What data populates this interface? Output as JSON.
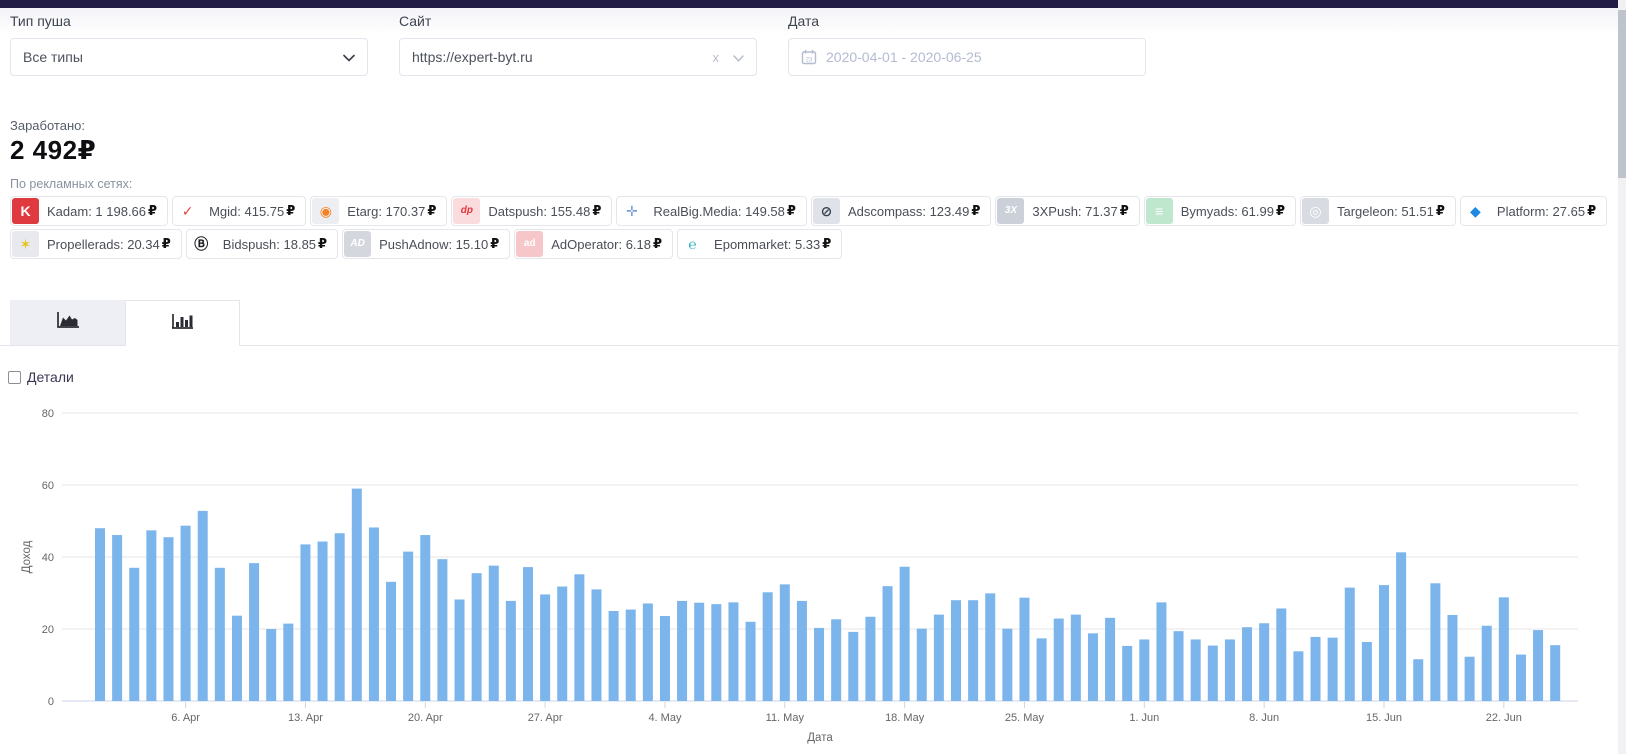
{
  "currency": "₽",
  "filters": {
    "push_type": {
      "label": "Тип пуша",
      "value": "Все типы"
    },
    "site": {
      "label": "Сайт",
      "value": "https://expert-byt.ru",
      "clear_icon": "x"
    },
    "date": {
      "label": "Дата",
      "value": "2020-04-01 - 2020-06-25"
    }
  },
  "summary": {
    "earned_label": "Заработано:",
    "earned_value": "2 492₽",
    "networks_label": "По рекламных сетях:"
  },
  "network_rows": [
    [
      {
        "id": "kadam",
        "label": "Kadam: 1 198.66",
        "icon": "kadam-icon",
        "glyph": "K",
        "icon_color": "#ffffff",
        "icon_bg": "#e03a41"
      },
      {
        "id": "mgid",
        "label": "Mgid: 415.75",
        "icon": "mgid-icon",
        "glyph": "✓",
        "icon_color": "#e24444",
        "icon_bg": "#ffffff"
      },
      {
        "id": "etarg",
        "label": "Etarg: 170.37",
        "icon": "etarg-icon",
        "glyph": "◉",
        "icon_color": "#f5821f",
        "icon_bg": "#eceef2"
      },
      {
        "id": "datspush",
        "label": "Datspush: 155.48",
        "icon": "datspush-icon",
        "glyph": "dp",
        "icon_color": "#e8363d",
        "icon_bg": "#fadbde",
        "icon_style": "italic"
      },
      {
        "id": "realbig-media",
        "label": "RealBig.Media: 149.58",
        "icon": "realbig-media-move-arrows-icon",
        "glyph": "✛",
        "icon_color": "#7b9fd4",
        "icon_bg": "#ffffff"
      },
      {
        "id": "adscompass",
        "label": "Adscompass: 123.49",
        "icon": "adscompass-compass-icon",
        "glyph": "⊘",
        "icon_color": "#39424e",
        "icon_bg": "#dfe2e8"
      },
      {
        "id": "3xpush",
        "label": "3XPush: 71.37",
        "icon": "3xpush-icon",
        "glyph": "3X",
        "icon_color": "#ffffff",
        "icon_bg": "#ccd1d9",
        "icon_style": "italic"
      },
      {
        "id": "bymyads",
        "label": "Bymyads: 61.99",
        "icon": "bymyads-icon",
        "glyph": "≡",
        "icon_color": "#ffffff",
        "icon_bg": "#bfe7cd"
      },
      {
        "id": "targeleon",
        "label": "Targeleon: 51.51",
        "icon": "targeleon-swirl-icon",
        "glyph": "◎",
        "icon_color": "#ffffff",
        "icon_bg": "#d8dbe2"
      },
      {
        "id": "platform",
        "label": "Platform: 27.65",
        "icon": "platform-cube-icon",
        "glyph": "◆",
        "icon_color": "#1e88e5",
        "icon_bg": "#ffffff"
      }
    ],
    [
      {
        "id": "propellerads",
        "label": "Propellerads: 20.34",
        "icon": "propellerads-propeller-icon",
        "glyph": "✶",
        "icon_color": "#e3c313",
        "icon_bg": "#e7e9ee"
      },
      {
        "id": "bidspush",
        "label": "Bidspush: 18.85",
        "icon": "bidspush-icon",
        "glyph": "Ⓑ",
        "icon_color": "#1d1d22",
        "icon_bg": "#ffffff"
      },
      {
        "id": "pushadnow",
        "label": "PushAdnow: 15.10",
        "icon": "pushadnow-icon",
        "glyph": "AD",
        "icon_color": "#ffffff",
        "icon_bg": "#d4d7de",
        "icon_style": "italic"
      },
      {
        "id": "adoperator",
        "label": "AdOperator: 6.18",
        "icon": "adoperator-icon",
        "glyph": "ad",
        "icon_color": "#ffffff",
        "icon_bg": "#f6c6c9"
      },
      {
        "id": "epommarket",
        "label": "Epommarket: 5.33",
        "icon": "epommarket-icon",
        "glyph": "℮",
        "icon_color": "#2cb6c9",
        "icon_bg": "#ffffff"
      }
    ]
  ],
  "tabs": [
    {
      "icon": "area-chart-icon",
      "active": false
    },
    {
      "icon": "column-chart-icon",
      "active": true
    }
  ],
  "details": {
    "label": "Детали",
    "checked": false
  },
  "chart_data": {
    "type": "bar",
    "title": "",
    "xlabel": "Дата",
    "ylabel": "Доход",
    "ylim": [
      0,
      80
    ],
    "yticks": [
      0,
      20,
      40,
      60,
      80
    ],
    "grid": true,
    "legend": false,
    "bar_color": "#7cb5ec",
    "start_date": "2020-04-01",
    "n_days": 86,
    "values": [
      48,
      46.1,
      37,
      47.4,
      45.5,
      48.7,
      52.8,
      37,
      23.7,
      38.3,
      20,
      21.5,
      43.5,
      44.3,
      46.6,
      59,
      48.2,
      33.1,
      41.5,
      46.1,
      39.4,
      28.2,
      35.5,
      37.6,
      27.8,
      37.2,
      29.6,
      31.8,
      35.2,
      31,
      25,
      25.4,
      27.1,
      23.6,
      27.8,
      27.3,
      26.9,
      27.4,
      22,
      30.2,
      32.4,
      27.8,
      20.3,
      22.7,
      19.2,
      23.4,
      31.9,
      37.3,
      20.1,
      24,
      28,
      28,
      29.9,
      20.1,
      28.7,
      17.4,
      22.9,
      24,
      18.8,
      23.1,
      15.3,
      17.1,
      27.4,
      19.4,
      17.1,
      15.4,
      17.1,
      20.5,
      21.6,
      25.7,
      13.8,
      17.8,
      17.6,
      31.5,
      16.4,
      32.2,
      41.3,
      11.6,
      32.7,
      23.9,
      12.3,
      20.9,
      28.8,
      12.9,
      19.7,
      15.5
    ],
    "xticks": [
      {
        "label": "6. Apr",
        "index": 5
      },
      {
        "label": "13. Apr",
        "index": 12
      },
      {
        "label": "20. Apr",
        "index": 19
      },
      {
        "label": "27. Apr",
        "index": 26
      },
      {
        "label": "4. May",
        "index": 33
      },
      {
        "label": "11. May",
        "index": 40
      },
      {
        "label": "18. May",
        "index": 47
      },
      {
        "label": "25. May",
        "index": 54
      },
      {
        "label": "1. Jun",
        "index": 61
      },
      {
        "label": "8. Jun",
        "index": 68
      },
      {
        "label": "15. Jun",
        "index": 75
      },
      {
        "label": "22. Jun",
        "index": 82
      }
    ]
  }
}
